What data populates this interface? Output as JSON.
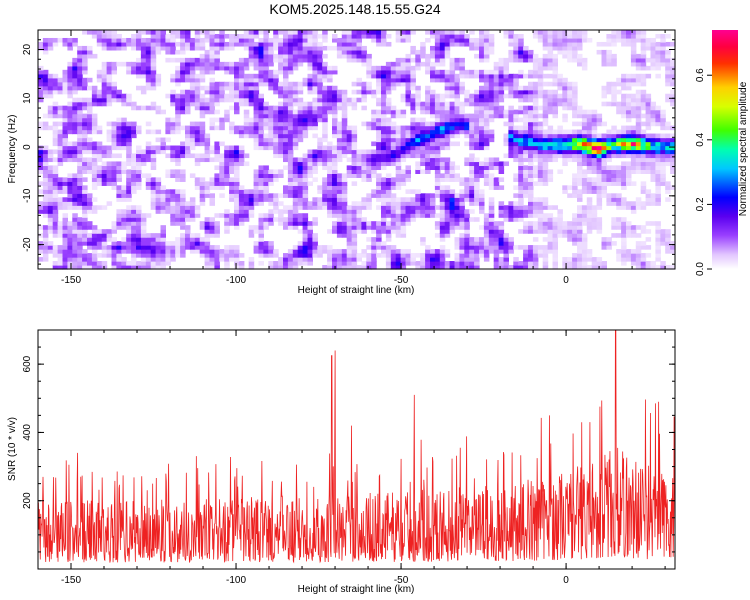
{
  "title": "KOM5.2025.148.15.55.G24",
  "chart_data": [
    {
      "type": "heatmap",
      "xlabel": "Height of straight line (km)",
      "ylabel": "Frequency (Hz)",
      "xlim": [
        -160,
        33
      ],
      "ylim": [
        -25,
        24
      ],
      "xticks": [
        -150,
        -100,
        -50,
        0
      ],
      "xtick_labels": [
        "-150",
        "-100",
        "-50",
        "0"
      ],
      "yticks": [
        -20,
        -10,
        0,
        10,
        20
      ],
      "ytick_labels": [
        "-20",
        "-10",
        "0",
        "10",
        "20"
      ],
      "grid": false,
      "colorbar": {
        "label": "Normalized spectral amplitude",
        "range": [
          0,
          0.74
        ],
        "ticks": [
          0,
          0.2,
          0.4,
          0.6
        ],
        "tick_labels": [
          "0.0",
          "0.2",
          "0.4",
          "0.6"
        ],
        "colormap": "rainbow (white-violet-blue-cyan-green-yellow-red-magenta)"
      },
      "noise_level": 0.12,
      "signal_trace": [
        {
          "x": -58,
          "y": -2.5,
          "amp": 0.15
        },
        {
          "x": -52,
          "y": -1.5,
          "amp": 0.18
        },
        {
          "x": -45,
          "y": 1.5,
          "amp": 0.25
        },
        {
          "x": -38,
          "y": 3.5,
          "amp": 0.28
        },
        {
          "x": -32,
          "y": 5.0,
          "amp": 0.22
        },
        {
          "x": -14,
          "y": 1.5,
          "amp": 0.28
        },
        {
          "x": -6,
          "y": 0.5,
          "amp": 0.3
        },
        {
          "x": 0,
          "y": 0.5,
          "amp": 0.4
        },
        {
          "x": 4,
          "y": 0.8,
          "amp": 0.5
        },
        {
          "x": 10,
          "y": -0.3,
          "amp": 0.7
        },
        {
          "x": 14,
          "y": 0.5,
          "amp": 0.4
        },
        {
          "x": 20,
          "y": 0.8,
          "amp": 0.6
        },
        {
          "x": 25,
          "y": 0.3,
          "amp": 0.4
        },
        {
          "x": 31,
          "y": 0.0,
          "amp": 0.3
        }
      ]
    },
    {
      "type": "line",
      "xlabel": "Height of straight line (km)",
      "ylabel": "SNR (10 * v/v)",
      "xlim": [
        -160,
        33
      ],
      "ylim": [
        0,
        700
      ],
      "xticks": [
        -150,
        -100,
        -50,
        0
      ],
      "xtick_labels": [
        "-150",
        "-100",
        "-50",
        "0"
      ],
      "yticks": [
        200,
        400,
        600
      ],
      "ytick_labels": [
        "200",
        "400",
        "600"
      ],
      "grid": false,
      "series": [
        {
          "color": "#ee2222",
          "baseline": [
            {
              "x": -160,
              "y": 120
            },
            {
              "x": -120,
              "y": 125
            },
            {
              "x": -80,
              "y": 130
            },
            {
              "x": -50,
              "y": 140
            },
            {
              "x": -20,
              "y": 150
            },
            {
              "x": -5,
              "y": 170
            },
            {
              "x": 5,
              "y": 190
            },
            {
              "x": 15,
              "y": 220
            },
            {
              "x": 25,
              "y": 190
            },
            {
              "x": 33,
              "y": 170
            }
          ],
          "peaks": [
            {
              "x": -70,
              "y": 640
            },
            {
              "x": -71,
              "y": 625
            },
            {
              "x": -46,
              "y": 510
            },
            {
              "x": 15,
              "y": 700
            },
            {
              "x": 28,
              "y": 490
            },
            {
              "x": -148,
              "y": 340
            },
            {
              "x": -65,
              "y": 420
            },
            {
              "x": -5,
              "y": 450
            }
          ]
        }
      ]
    }
  ]
}
